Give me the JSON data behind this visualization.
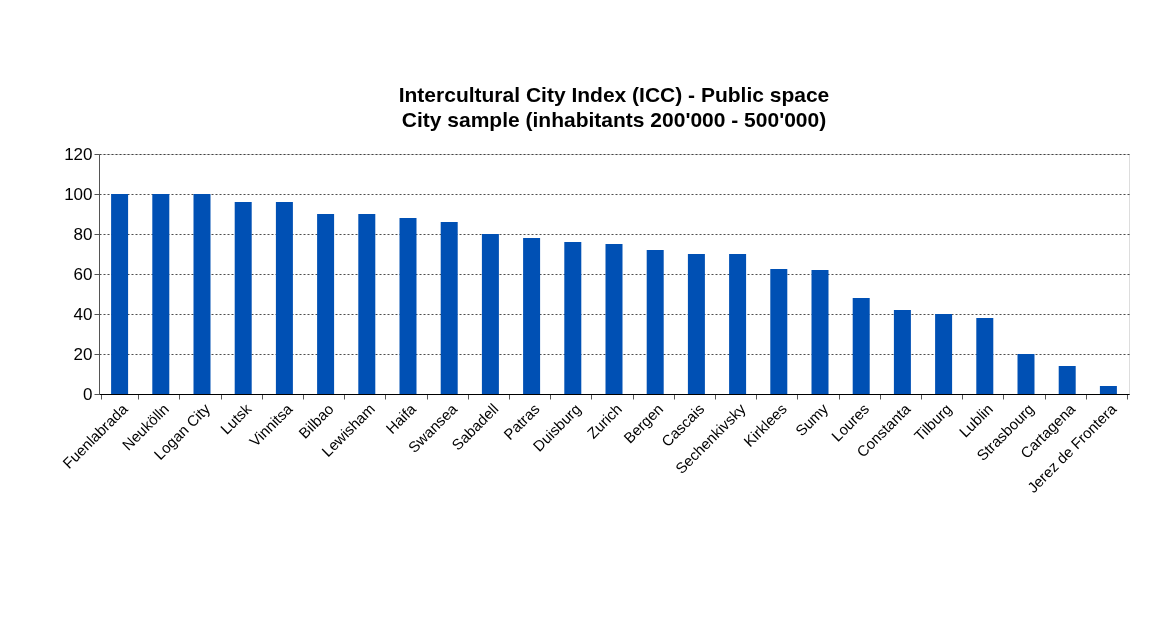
{
  "chart_data": {
    "type": "bar",
    "title": "Intercultural City Index (ICC) - Public space",
    "subtitle": "City sample (inhabitants 200'000 - 500'000)",
    "categories": [
      "Fuenlabrada",
      "Neukölln",
      "Logan City",
      "Lutsk",
      "Vinnitsa",
      "Bilbao",
      "Lewisham",
      "Haifa",
      "Swansea",
      "Sabadell",
      "Patras",
      "Duisburg",
      "Zurich",
      "Bergen",
      "Cascais",
      "Sechenkivsky",
      "Kirklees",
      "Sumy",
      "Loures",
      "Constanta",
      "Tilburg",
      "Lublin",
      "Strasbourg",
      "Cartagena",
      "Jerez de Frontera"
    ],
    "values": [
      100,
      100,
      100,
      96,
      96,
      90,
      90,
      88,
      86,
      80,
      78,
      76,
      75,
      72,
      70,
      70,
      62.5,
      62,
      48,
      42,
      40,
      38,
      20,
      14,
      4
    ],
    "color": "#0050b4",
    "ylim": [
      0,
      120
    ],
    "yticks": [
      0,
      20,
      40,
      60,
      80,
      100,
      120
    ],
    "grid": "y"
  }
}
